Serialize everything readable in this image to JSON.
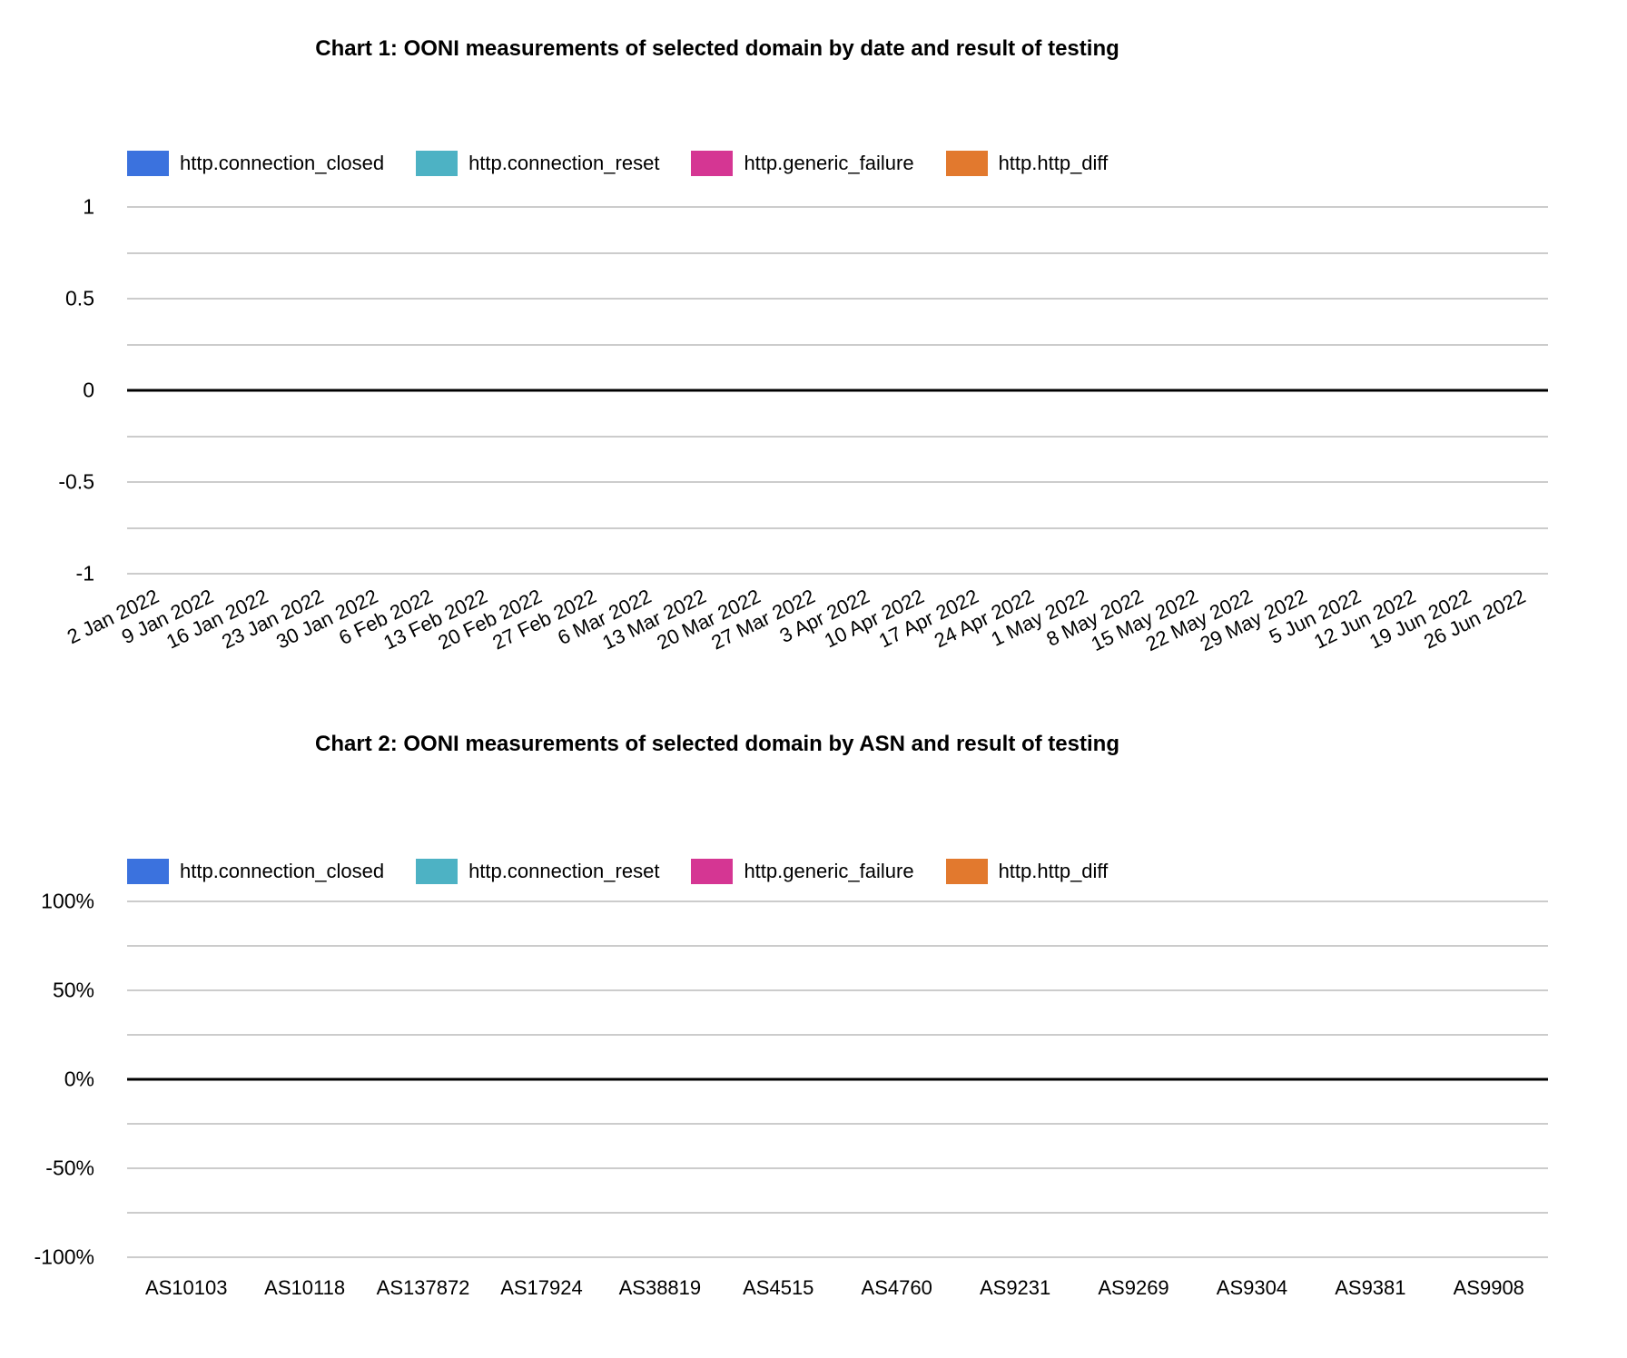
{
  "page": {
    "background": "#ffffff"
  },
  "chart_data": [
    {
      "type": "line",
      "title": "Chart 1: OONI measurements of selected domain by date and result of testing",
      "xlabel": "",
      "ylabel": "",
      "x": [
        "2 Jan 2022",
        "9 Jan 2022",
        "16 Jan 2022",
        "23 Jan 2022",
        "30 Jan 2022",
        "6 Feb 2022",
        "13 Feb 2022",
        "20 Feb 2022",
        "27 Feb 2022",
        "6 Mar 2022",
        "13 Mar 2022",
        "20 Mar 2022",
        "27 Mar 2022",
        "3 Apr 2022",
        "10 Apr 2022",
        "17 Apr 2022",
        "24 Apr 2022",
        "1 May 2022",
        "8 May 2022",
        "15 May 2022",
        "22 May 2022",
        "29 May 2022",
        "5 Jun 2022",
        "12 Jun 2022",
        "19 Jun 2022",
        "26 Jun 2022"
      ],
      "series": [
        {
          "name": "http.connection_closed",
          "color": "#3B72DE",
          "values": []
        },
        {
          "name": "http.connection_reset",
          "color": "#4DB2C4",
          "values": []
        },
        {
          "name": "http.generic_failure",
          "color": "#D53693",
          "values": []
        },
        {
          "name": "http.http_diff",
          "color": "#E2792E",
          "values": []
        }
      ],
      "ylim": [
        -1,
        1
      ],
      "y_tick_labels": [
        "1",
        "0.5",
        "0",
        "-0.5",
        "-1"
      ],
      "y_tick_values": [
        1,
        0.5,
        0,
        -0.5,
        -1
      ],
      "grid": true,
      "minor_gridlines": true,
      "grid_color": "#cccccc",
      "baseline_value": 0,
      "baseline_color": "#000000",
      "legend_position": "top",
      "x_tick_rotation_deg": -26,
      "plot_empty": true
    },
    {
      "type": "bar",
      "title": "Chart 2: OONI measurements of selected domain by ASN and result of testing",
      "xlabel": "",
      "ylabel": "",
      "x": [
        "AS10103",
        "AS10118",
        "AS137872",
        "AS17924",
        "AS38819",
        "AS4515",
        "AS4760",
        "AS9231",
        "AS9269",
        "AS9304",
        "AS9381",
        "AS9908"
      ],
      "series": [
        {
          "name": "http.connection_closed",
          "color": "#3B72DE",
          "values": []
        },
        {
          "name": "http.connection_reset",
          "color": "#4DB2C4",
          "values": []
        },
        {
          "name": "http.generic_failure",
          "color": "#D53693",
          "values": []
        },
        {
          "name": "http.http_diff",
          "color": "#E2792E",
          "values": []
        }
      ],
      "ylim_percent": [
        -100,
        100
      ],
      "y_tick_labels": [
        "100%",
        "50%",
        "0%",
        "-50%",
        "-100%"
      ],
      "y_tick_values": [
        100,
        50,
        0,
        -50,
        -100
      ],
      "grid": true,
      "minor_gridlines": true,
      "grid_color": "#cccccc",
      "baseline_value": 0,
      "baseline_color": "#000000",
      "legend_position": "top",
      "x_tick_rotation_deg": 0,
      "plot_empty": true
    }
  ]
}
